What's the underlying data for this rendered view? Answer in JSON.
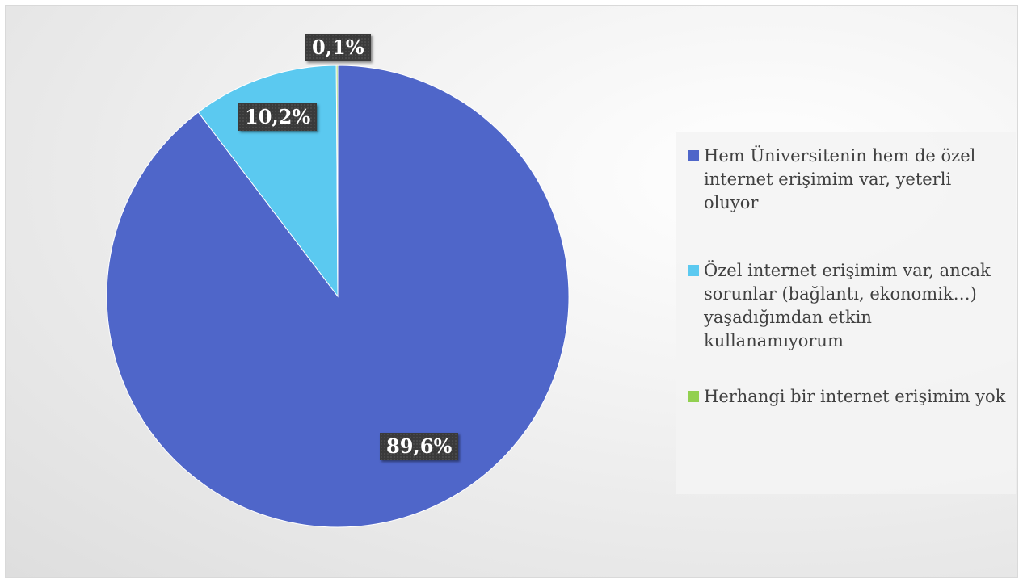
{
  "chart_data": {
    "type": "pie",
    "categories": [
      "Hem Üniversitenin hem de özel internet erişimim var, yeterli oluyor",
      "Özel internet erişimim var, ancak sorunlar (bağlantı, ekonomik…) yaşadığımdan etkin kullanamıyorum",
      "Herhangi bir internet erişimim yok"
    ],
    "values": [
      89.6,
      10.2,
      0.1
    ],
    "data_labels": [
      "89,6%",
      "10,2%",
      "0,1%"
    ],
    "colors": [
      "#4f66c9",
      "#5bc9f0",
      "#92d050"
    ],
    "legend_position": "right",
    "title": ""
  }
}
